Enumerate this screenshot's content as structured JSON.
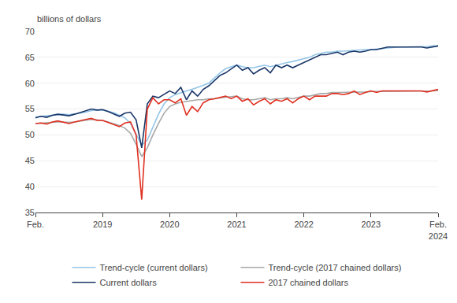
{
  "chart_data": {
    "type": "line",
    "ylabel": "billions of dollars",
    "categories": [
      "Feb.",
      null,
      null,
      null,
      null,
      null,
      null,
      null,
      null,
      null,
      null,
      null,
      "2019",
      null,
      null,
      null,
      null,
      null,
      null,
      null,
      null,
      null,
      null,
      null,
      "2020",
      null,
      null,
      null,
      null,
      null,
      null,
      null,
      null,
      null,
      null,
      null,
      "2021",
      null,
      null,
      null,
      null,
      null,
      null,
      null,
      null,
      null,
      null,
      null,
      "2022",
      null,
      null,
      null,
      null,
      null,
      null,
      null,
      null,
      null,
      null,
      null,
      "2023",
      null,
      null,
      null,
      null,
      null,
      null,
      null,
      null,
      null,
      null,
      null,
      "Feb.\n2024"
    ],
    "ylim": [
      35,
      70
    ],
    "yticks": [
      35,
      40,
      45,
      50,
      55,
      60,
      65,
      70
    ],
    "grid": true,
    "series": [
      {
        "name": "Trend-cycle (current dollars)",
        "color": "#93c6e8",
        "values": [
          53.5,
          53.6,
          53.7,
          53.8,
          53.9,
          54.0,
          53.9,
          54.0,
          54.2,
          54.4,
          54.7,
          54.8,
          54.8,
          54.6,
          54.3,
          53.8,
          53.3,
          52.2,
          50.2,
          48.0,
          49.0,
          51.5,
          54.0,
          56.0,
          57.2,
          57.8,
          58.2,
          58.5,
          58.8,
          59.2,
          59.5,
          60.0,
          61.0,
          62.0,
          62.8,
          63.2,
          63.5,
          63.2,
          63.0,
          63.0,
          63.2,
          63.5,
          63.2,
          63.5,
          63.8,
          64.0,
          64.2,
          64.5,
          64.8,
          65.0,
          65.5,
          65.8,
          66.0,
          66.0,
          66.2,
          66.2,
          66.3,
          66.3,
          66.4,
          66.5,
          66.5,
          66.6,
          66.7,
          66.8,
          67.0,
          67.0,
          67.0,
          67.0,
          67.0,
          67.1,
          67.1,
          67.2,
          67.2
        ]
      },
      {
        "name": "Trend-cycle (2017 chained dollars)",
        "color": "#a8a8a8",
        "values": [
          52.2,
          52.3,
          52.3,
          52.4,
          52.5,
          52.5,
          52.4,
          52.5,
          52.7,
          52.9,
          53.0,
          52.9,
          52.8,
          52.5,
          52.2,
          51.8,
          51.3,
          50.3,
          48.2,
          45.8,
          47.5,
          50.0,
          52.2,
          54.2,
          55.5,
          56.0,
          56.3,
          56.5,
          56.7,
          56.8,
          56.8,
          57.0,
          57.0,
          57.2,
          57.3,
          57.4,
          57.5,
          57.0,
          56.8,
          56.8,
          57.0,
          57.2,
          56.8,
          57.0,
          57.0,
          57.2,
          57.0,
          57.2,
          57.5,
          57.5,
          57.8,
          58.0,
          58.0,
          58.2,
          58.2,
          58.2,
          58.2,
          58.3,
          58.3,
          58.3,
          58.4,
          58.4,
          58.4,
          58.4,
          58.5,
          58.5,
          58.5,
          58.5,
          58.5,
          58.5,
          58.5,
          58.5,
          58.6
        ]
      },
      {
        "name": "Current dollars",
        "color": "#1a3668",
        "values": [
          53.3,
          53.6,
          53.4,
          53.8,
          54.0,
          53.9,
          53.7,
          54.0,
          54.3,
          54.7,
          55.0,
          54.8,
          54.9,
          54.5,
          54.1,
          53.6,
          54.2,
          54.4,
          52.9,
          47.5,
          56.0,
          57.5,
          57.2,
          57.8,
          58.5,
          58.0,
          59.2,
          56.8,
          58.5,
          57.5,
          58.8,
          59.5,
          60.5,
          61.5,
          62.0,
          62.8,
          63.5,
          62.5,
          63.0,
          61.8,
          62.5,
          63.0,
          62.0,
          63.5,
          63.0,
          63.5,
          63.0,
          63.5,
          64.0,
          64.5,
          65.0,
          65.5,
          65.5,
          65.8,
          66.0,
          65.5,
          66.0,
          66.2,
          66.0,
          66.2,
          66.5,
          66.5,
          66.8,
          67.0,
          67.0,
          67.0,
          67.0,
          67.0,
          67.0,
          67.0,
          66.8,
          67.0,
          67.2
        ]
      },
      {
        "name": "2017 chained dollars",
        "color": "#e03020",
        "values": [
          52.2,
          52.3,
          52.1,
          52.5,
          52.7,
          52.5,
          52.2,
          52.5,
          52.8,
          53.0,
          53.2,
          52.8,
          52.8,
          52.4,
          52.0,
          51.6,
          52.3,
          52.5,
          50.0,
          37.5,
          55.0,
          57.2,
          56.0,
          56.8,
          56.8,
          56.2,
          57.0,
          53.8,
          55.5,
          54.5,
          56.2,
          56.8,
          57.0,
          57.2,
          57.5,
          57.0,
          57.5,
          56.5,
          57.0,
          55.8,
          56.5,
          57.0,
          56.0,
          56.8,
          56.5,
          57.0,
          56.2,
          57.0,
          57.5,
          56.8,
          57.5,
          57.5,
          57.5,
          58.0,
          58.0,
          57.8,
          58.0,
          58.5,
          57.8,
          58.2,
          58.5,
          58.2,
          58.5,
          58.5,
          58.5,
          58.5,
          58.5,
          58.5,
          58.5,
          58.5,
          58.3,
          58.5,
          58.8
        ]
      }
    ]
  }
}
